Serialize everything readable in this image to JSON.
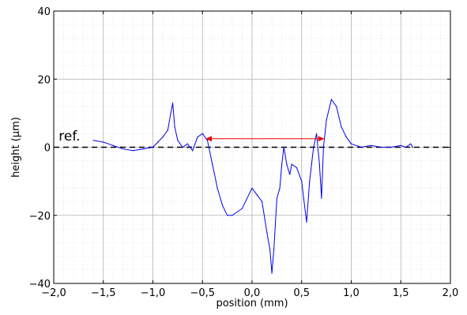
{
  "chart_data": {
    "type": "line",
    "xlabel": "position (mm)",
    "ylabel": "height (µm)",
    "xlim": [
      -2.0,
      2.0
    ],
    "ylim": [
      -40,
      40
    ],
    "xticks": [
      -2.0,
      -1.5,
      -1.0,
      -0.5,
      0.0,
      0.5,
      1.0,
      1.5,
      2.0
    ],
    "xtick_labels": [
      "−2,0",
      "−1,5",
      "−1,0",
      "−0,5",
      "0,0",
      "0,5",
      "1,0",
      "1,5",
      "2,0"
    ],
    "yticks": [
      -40,
      -20,
      0,
      20,
      40
    ],
    "ytick_labels": [
      "−40",
      "−20",
      "0",
      "20",
      "40"
    ],
    "grid": true,
    "series": [
      {
        "color": "#0000ee",
        "x": [
          -1.6,
          -1.5,
          -1.4,
          -1.3,
          -1.2,
          -1.1,
          -1.0,
          -0.95,
          -0.9,
          -0.85,
          -0.82,
          -0.8,
          -0.78,
          -0.75,
          -0.7,
          -0.65,
          -0.6,
          -0.55,
          -0.5,
          -0.45,
          -0.4,
          -0.35,
          -0.3,
          -0.25,
          -0.2,
          -0.1,
          0.0,
          0.05,
          0.1,
          0.15,
          0.18,
          0.2,
          0.22,
          0.25,
          0.28,
          0.3,
          0.32,
          0.35,
          0.38,
          0.4,
          0.45,
          0.5,
          0.52,
          0.55,
          0.58,
          0.6,
          0.62,
          0.65,
          0.68,
          0.7,
          0.72,
          0.75,
          0.8,
          0.85,
          0.9,
          0.95,
          1.0,
          1.1,
          1.2,
          1.3,
          1.4,
          1.5,
          1.55,
          1.6,
          1.62
        ],
        "y": [
          2,
          1.5,
          0.5,
          -0.5,
          -1,
          -0.5,
          0,
          1.5,
          3,
          5,
          10,
          13,
          6,
          2,
          0,
          1,
          -1,
          3,
          4,
          2,
          -5,
          -12,
          -17,
          -20,
          -20,
          -18,
          -12,
          -14,
          -16,
          -25,
          -30,
          -37,
          -30,
          -15,
          -12,
          -5,
          0,
          -5,
          -8,
          -5,
          -6,
          -10,
          -15,
          -22,
          -10,
          -5,
          0,
          4,
          -5,
          -15,
          0,
          8,
          14,
          12,
          6,
          3,
          1,
          0,
          0.5,
          0,
          0,
          0.5,
          0,
          1,
          0
        ]
      }
    ],
    "reference_line": {
      "y": 0,
      "style": "dashed",
      "color": "#000000"
    },
    "annotations": [
      {
        "text": "ref.",
        "x": -1.95,
        "y": 2
      }
    ],
    "arrow": {
      "x_start": -0.47,
      "x_end": 0.73,
      "y": 2.5,
      "color": "#ee0000",
      "double_headed": true
    }
  }
}
